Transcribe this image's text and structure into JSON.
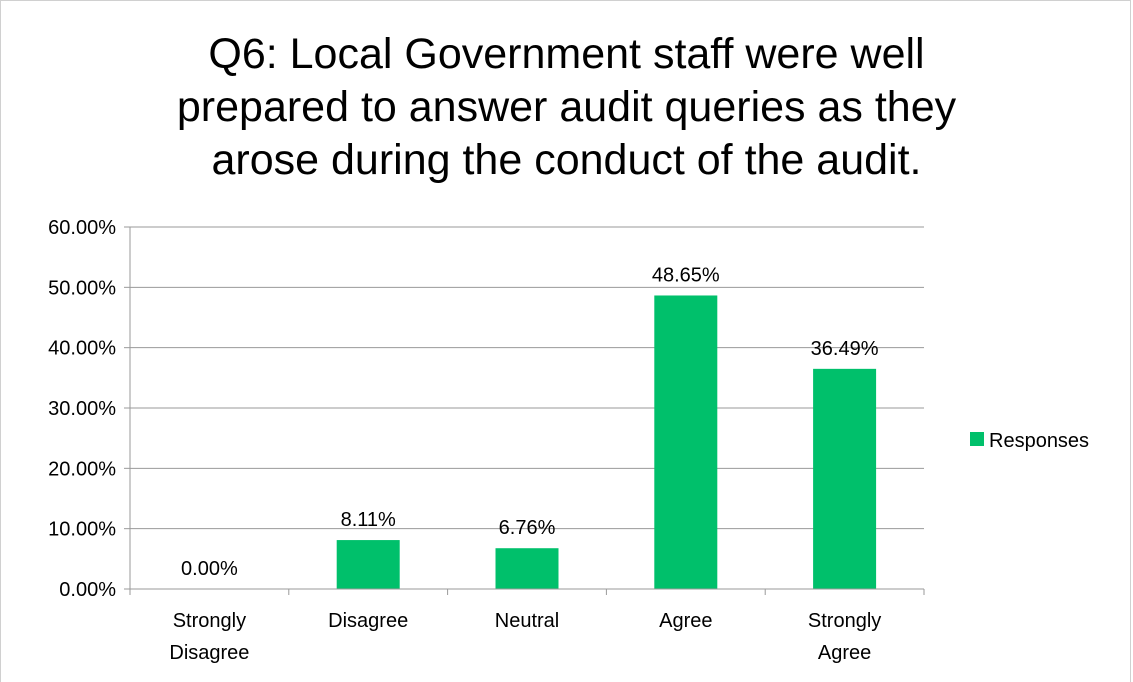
{
  "chart_data": {
    "type": "bar",
    "title": "Q6: Local Government staff were well\nprepared to answer audit queries as they\narose during the conduct of the audit.",
    "categories": [
      "Strongly\nDisagree",
      "Disagree",
      "Neutral",
      "Agree",
      "Strongly\nAgree"
    ],
    "series": [
      {
        "name": "Responses",
        "values": [
          0.0,
          8.11,
          6.76,
          48.65,
          36.49
        ]
      }
    ],
    "data_labels": [
      "0.00%",
      "8.11%",
      "6.76%",
      "48.65%",
      "36.49%"
    ],
    "y_ticks": [
      "0.00%",
      "10.00%",
      "20.00%",
      "30.00%",
      "40.00%",
      "50.00%",
      "60.00%"
    ],
    "ylim": [
      0,
      60
    ],
    "xlabel": "",
    "ylabel": "",
    "grid": true,
    "legend_position": "right",
    "bar_color": "#00c06b",
    "grid_color": "#9a9a9a"
  }
}
